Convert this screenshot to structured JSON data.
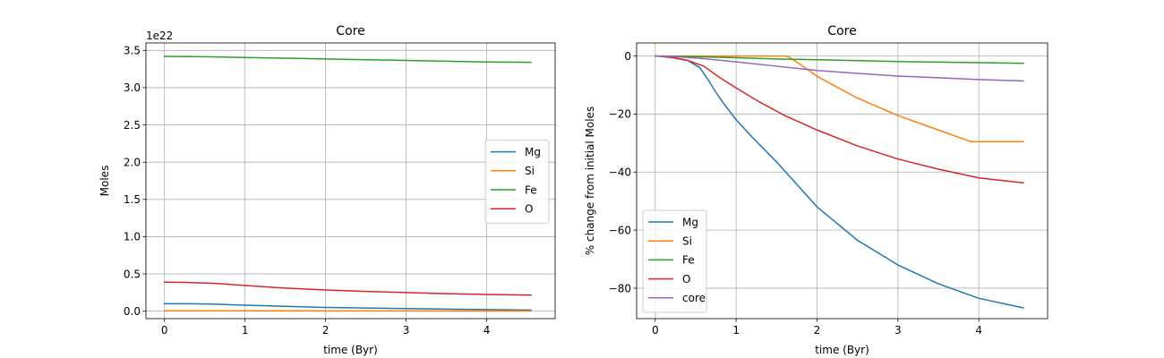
{
  "chart_data": [
    {
      "type": "line",
      "title": "Core",
      "xlabel": "time (Byr)",
      "ylabel": "Moles",
      "offset_label": "1e22",
      "xlim": [
        -0.23,
        4.85
      ],
      "ylim": [
        -0.1,
        3.6
      ],
      "xticks": [
        0,
        1,
        2,
        3,
        4
      ],
      "yticks": [
        0.0,
        0.5,
        1.0,
        1.5,
        2.0,
        2.5,
        3.0,
        3.5
      ],
      "ytick_labels": [
        "0.0",
        "0.5",
        "1.0",
        "1.5",
        "2.0",
        "2.5",
        "3.0",
        "3.5"
      ],
      "grid": true,
      "legend_position": "center-right",
      "series": [
        {
          "name": "Mg",
          "color": "#1f77b4",
          "x": [
            0,
            0.3,
            0.6,
            1.0,
            1.5,
            2.0,
            2.5,
            3.0,
            3.5,
            4.0,
            4.55
          ],
          "y": [
            0.1,
            0.1,
            0.095,
            0.08,
            0.065,
            0.05,
            0.042,
            0.035,
            0.028,
            0.022,
            0.015
          ]
        },
        {
          "name": "Si",
          "color": "#ff7f0e",
          "x": [
            0,
            1.0,
            2.0,
            3.0,
            4.0,
            4.55
          ],
          "y": [
            0.005,
            0.005,
            0.004,
            0.003,
            0.002,
            0.002
          ]
        },
        {
          "name": "Fe",
          "color": "#2ca02c",
          "x": [
            0,
            0.5,
            1.0,
            1.5,
            2.0,
            2.5,
            3.0,
            3.5,
            4.0,
            4.55
          ],
          "y": [
            3.42,
            3.415,
            3.405,
            3.395,
            3.385,
            3.375,
            3.365,
            3.355,
            3.345,
            3.34
          ]
        },
        {
          "name": "O",
          "color": "#d62728",
          "x": [
            0,
            0.3,
            0.6,
            1.0,
            1.5,
            2.0,
            2.5,
            3.0,
            3.5,
            4.0,
            4.55
          ],
          "y": [
            0.39,
            0.385,
            0.375,
            0.345,
            0.31,
            0.285,
            0.265,
            0.25,
            0.235,
            0.225,
            0.215
          ]
        }
      ]
    },
    {
      "type": "line",
      "title": "Core",
      "xlabel": "time (Byr)",
      "ylabel": "% change from initial Moles",
      "xlim": [
        -0.23,
        4.85
      ],
      "ylim": [
        -90.5,
        4.5
      ],
      "xticks": [
        0,
        1,
        2,
        3,
        4
      ],
      "yticks": [
        0,
        -20,
        -40,
        -60,
        -80
      ],
      "ytick_labels": [
        "0",
        "−20",
        "−40",
        "−60",
        "−80"
      ],
      "grid": true,
      "legend_position": "lower-left",
      "series": [
        {
          "name": "Mg",
          "color": "#1f77b4",
          "x": [
            0,
            0.2,
            0.4,
            0.55,
            0.65,
            0.75,
            0.85,
            1.0,
            1.2,
            1.5,
            2.0,
            2.5,
            3.0,
            3.5,
            4.0,
            4.55
          ],
          "y": [
            0,
            -0.3,
            -1.5,
            -4,
            -8,
            -12.5,
            -16.5,
            -22,
            -28,
            -36.5,
            -52,
            -63.5,
            -72,
            -78.5,
            -83.5,
            -86.8
          ]
        },
        {
          "name": "Si",
          "color": "#ff7f0e",
          "x": [
            0,
            1.0,
            1.6,
            1.65,
            1.8,
            2.0,
            2.5,
            3.0,
            3.5,
            3.9,
            4.55
          ],
          "y": [
            0,
            0,
            0,
            -0.3,
            -3,
            -7,
            -14.5,
            -20.5,
            -25.5,
            -29.5,
            -29.5
          ]
        },
        {
          "name": "Fe",
          "color": "#2ca02c",
          "x": [
            0,
            0.5,
            1.0,
            1.5,
            2.0,
            2.5,
            3.0,
            3.5,
            4.0,
            4.55
          ],
          "y": [
            0,
            -0.2,
            -0.6,
            -1.0,
            -1.3,
            -1.6,
            -1.9,
            -2.1,
            -2.3,
            -2.5
          ]
        },
        {
          "name": "O",
          "color": "#d62728",
          "x": [
            0,
            0.2,
            0.4,
            0.6,
            0.8,
            1.0,
            1.3,
            1.6,
            2.0,
            2.5,
            3.0,
            3.5,
            4.0,
            4.55
          ],
          "y": [
            0,
            -0.5,
            -1.5,
            -3.5,
            -7.5,
            -11,
            -16,
            -20.5,
            -25.5,
            -31,
            -35.5,
            -39,
            -42,
            -43.7
          ]
        },
        {
          "name": "core",
          "color": "#9467bd",
          "x": [
            0,
            0.3,
            0.6,
            1.0,
            1.5,
            2.0,
            2.5,
            3.0,
            3.5,
            4.0,
            4.55
          ],
          "y": [
            0,
            -0.3,
            -0.9,
            -2.0,
            -3.5,
            -5.0,
            -6.0,
            -6.9,
            -7.5,
            -8.1,
            -8.6
          ]
        }
      ]
    }
  ]
}
